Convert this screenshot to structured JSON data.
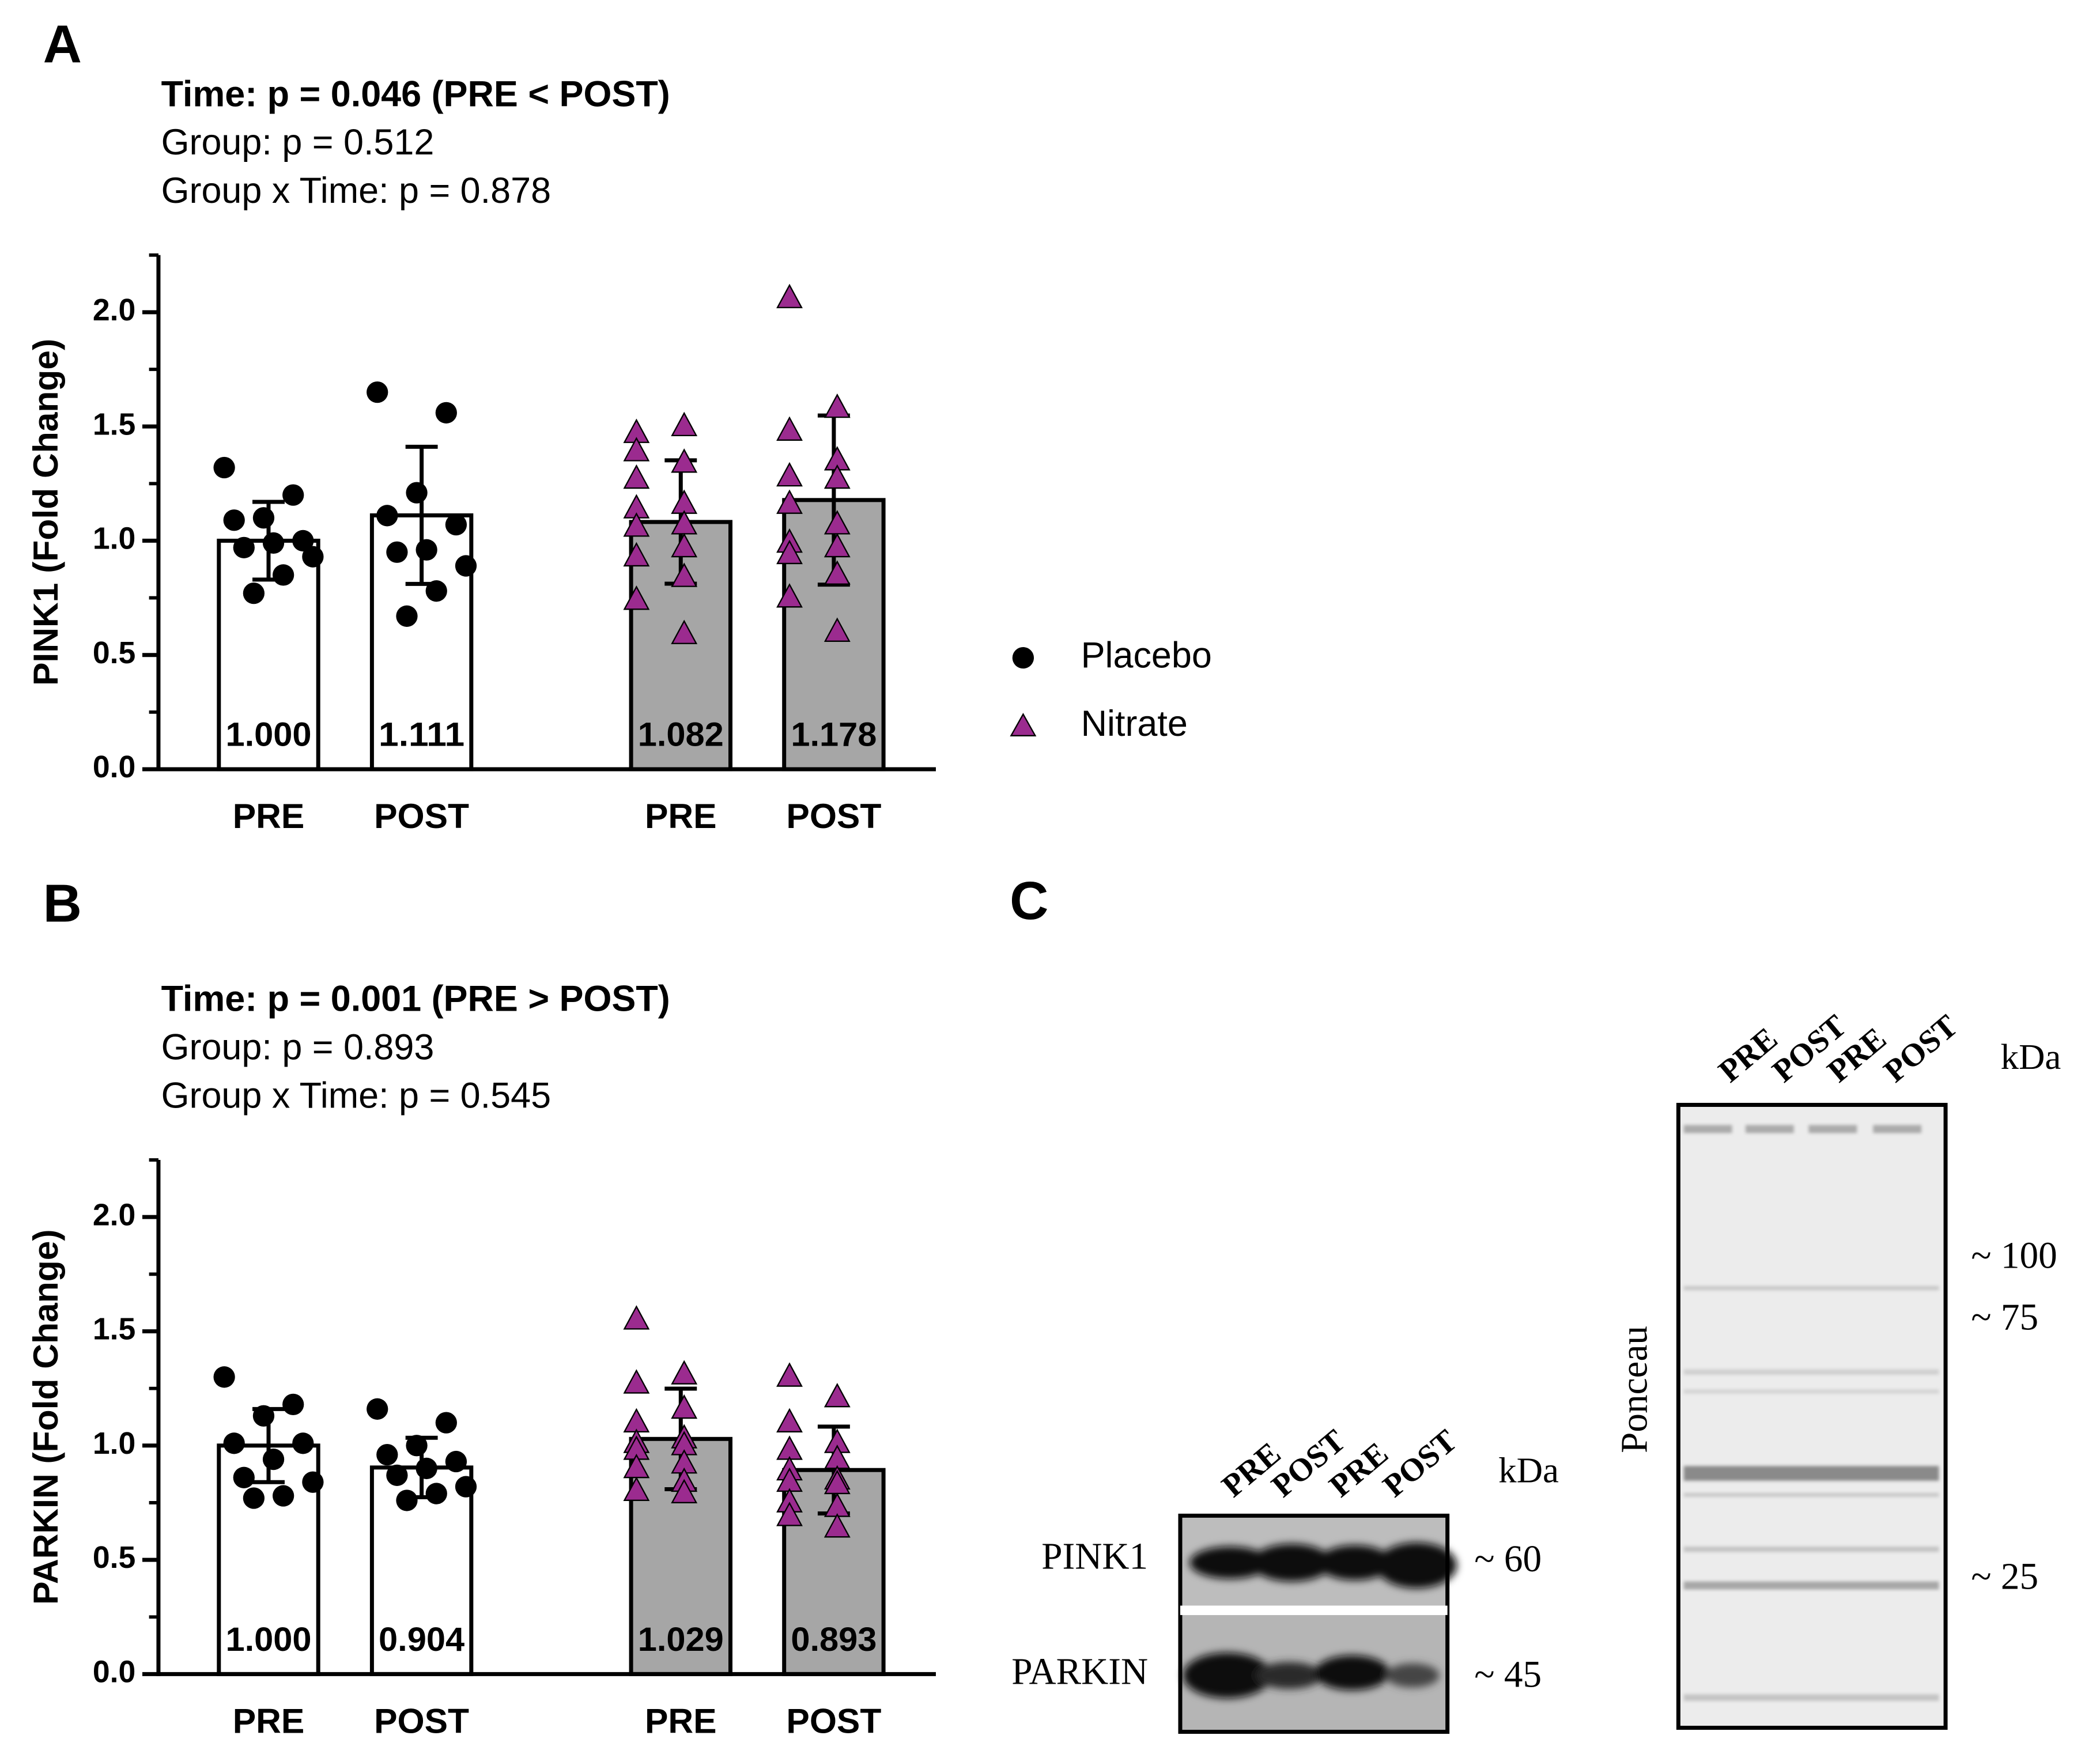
{
  "chart_data": [
    {
      "type": "bar",
      "panel": "A",
      "title": "Time: p = 0.046 (PRE < POST)",
      "subtitle": [
        "Group: p = 0.512",
        "Group x Time: p = 0.878"
      ],
      "ylabel": "PINK1 (Fold Change)",
      "ylim": [
        0,
        2.25
      ],
      "yticks": [
        {
          "value": 0,
          "label": "0.0"
        },
        0.5,
        {
          "value": 1,
          "label": "1.0"
        },
        1.5,
        {
          "value": 2,
          "label": "2.0"
        }
      ],
      "yminor": [
        0.25,
        0.75,
        1.25,
        1.75,
        2.25
      ],
      "legend": "right",
      "series": [
        {
          "name": "Placebo",
          "color": "#000000",
          "bar_color": "#ffffff",
          "marker": "circle",
          "categories": [
            "PRE",
            "POST"
          ],
          "values": [
            1.0,
            1.111
          ],
          "value_labels": [
            "1.000",
            "1.111"
          ],
          "errors": [
            0.17,
            0.3
          ],
          "points": [
            [
              1.32,
              1.2,
              1.1,
              1.09,
              1.0,
              0.99,
              0.97,
              0.93,
              0.85,
              0.77
            ],
            [
              1.65,
              1.56,
              1.21,
              1.11,
              1.07,
              0.96,
              0.95,
              0.89,
              0.78,
              0.67
            ]
          ]
        },
        {
          "name": "Nitrate",
          "color": "#9b2b8f",
          "bar_color": "#a6a6a6",
          "marker": "triangle",
          "categories": [
            "PRE",
            "POST"
          ],
          "values": [
            1.082,
            1.178
          ],
          "value_labels": [
            "1.082",
            "1.178"
          ],
          "errors": [
            0.27,
            0.37
          ],
          "points": [
            [
              1.47,
              1.5,
              1.39,
              1.34,
              1.27,
              1.16,
              1.14,
              1.07,
              1.06,
              0.97,
              0.93,
              0.84,
              0.74,
              0.59
            ],
            [
              2.06,
              1.58,
              1.48,
              1.35,
              1.28,
              1.27,
              1.16,
              1.07,
              0.99,
              0.97,
              0.94,
              0.85,
              0.75,
              0.6
            ]
          ]
        }
      ]
    },
    {
      "type": "bar",
      "panel": "B",
      "title": "Time: p = 0.001 (PRE >  POST)",
      "subtitle": [
        "Group: p = 0.893",
        "Group x Time: p = 0.545"
      ],
      "ylabel": "PARKIN (Fold Change)",
      "ylim": [
        0,
        2.25
      ],
      "yticks": [
        {
          "value": 0,
          "label": "0.0"
        },
        0.5,
        {
          "value": 1,
          "label": "1.0"
        },
        1.5,
        {
          "value": 2,
          "label": "2.0"
        }
      ],
      "yminor": [
        0.25,
        0.75,
        1.25,
        1.75,
        2.25
      ],
      "series": [
        {
          "name": "Placebo",
          "color": "#000000",
          "bar_color": "#ffffff",
          "marker": "circle",
          "categories": [
            "PRE",
            "POST"
          ],
          "values": [
            1.0,
            0.904
          ],
          "value_labels": [
            "1.000",
            "0.904"
          ],
          "errors": [
            0.16,
            0.13
          ],
          "points": [
            [
              1.3,
              1.18,
              1.13,
              1.01,
              1.01,
              0.94,
              0.86,
              0.84,
              0.78,
              0.77
            ],
            [
              1.16,
              1.1,
              1.0,
              0.96,
              0.93,
              0.9,
              0.87,
              0.82,
              0.79,
              0.76
            ]
          ]
        },
        {
          "name": "Nitrate",
          "color": "#9b2b8f",
          "bar_color": "#a6a6a6",
          "marker": "triangle",
          "categories": [
            "PRE",
            "POST"
          ],
          "values": [
            1.029,
            0.893
          ],
          "value_labels": [
            "1.029",
            "0.893"
          ],
          "errors": [
            0.22,
            0.19
          ],
          "points": [
            [
              1.55,
              1.31,
              1.27,
              1.16,
              1.1,
              1.03,
              1.01,
              1.0,
              0.98,
              0.92,
              0.9,
              0.84,
              0.8,
              0.79
            ],
            [
              1.3,
              1.21,
              1.1,
              1.01,
              0.98,
              0.94,
              0.89,
              0.85,
              0.84,
              0.83,
              0.75,
              0.73,
              0.69,
              0.64
            ]
          ]
        }
      ]
    }
  ],
  "blot": {
    "panel": "C",
    "lanes": [
      "PRE",
      "POST",
      "PRE",
      "POST"
    ],
    "kda": "kDa",
    "rows": [
      "PINK1",
      "PARKIN"
    ],
    "markers": [
      "~ 60",
      "~ 45"
    ]
  },
  "ponceau": {
    "label": "Ponceau",
    "lanes": [
      "PRE",
      "POST",
      "PRE",
      "POST"
    ],
    "kda": "kDa",
    "markers": [
      "~ 100",
      "~ 75",
      "~ 25"
    ]
  }
}
